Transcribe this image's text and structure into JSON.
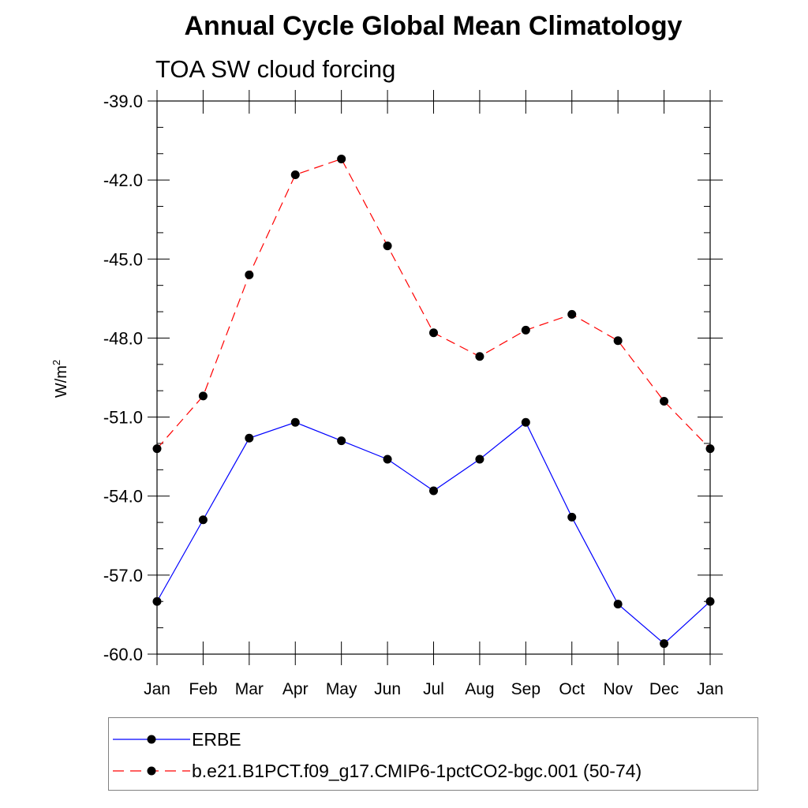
{
  "chart_data": {
    "type": "line",
    "title": "Annual Cycle Global Mean Climatology",
    "subtitle": "TOA SW cloud forcing",
    "ylabel": "W/m",
    "ylabel_superscript": "2",
    "xlabel": "",
    "categories": [
      "Jan",
      "Feb",
      "Mar",
      "Apr",
      "May",
      "Jun",
      "Jul",
      "Aug",
      "Sep",
      "Oct",
      "Nov",
      "Dec",
      "Jan"
    ],
    "ylim": [
      -60.0,
      -39.0
    ],
    "yticks": [
      "-60.0",
      "-57.0",
      "-54.0",
      "-51.0",
      "-48.0",
      "-45.0",
      "-42.0",
      "-39.0"
    ],
    "series": [
      {
        "name": "ERBE",
        "color": "#0000ff",
        "dash": "solid",
        "values": [
          -58.0,
          -54.9,
          -51.8,
          -51.2,
          -51.9,
          -52.6,
          -53.8,
          -52.6,
          -51.2,
          -54.8,
          -58.1,
          -59.6,
          -58.0
        ]
      },
      {
        "name": "b.e21.B1PCT.f09_g17.CMIP6-1pctCO2-bgc.001 (50-74)",
        "color": "#ff0000",
        "dash": "dashed",
        "values": [
          -52.2,
          -50.2,
          -45.6,
          -41.8,
          -41.2,
          -44.5,
          -47.8,
          -48.7,
          -47.7,
          -47.1,
          -48.1,
          -50.4,
          -52.2
        ]
      }
    ],
    "grid": false,
    "legend_position": "bottom"
  }
}
